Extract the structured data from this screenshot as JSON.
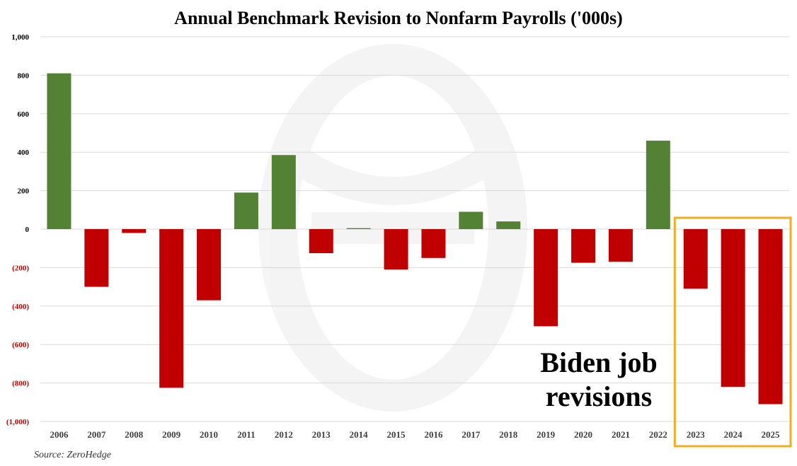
{
  "chart_data": {
    "type": "bar",
    "title": "Annual Benchmark Revision to Nonfarm Payrolls ('000s)",
    "categories": [
      "2006",
      "2007",
      "2008",
      "2009",
      "2010",
      "2011",
      "2012",
      "2013",
      "2014",
      "2015",
      "2016",
      "2017",
      "2018",
      "2019",
      "2020",
      "2021",
      "2022",
      "2023",
      "2024",
      "2025"
    ],
    "values": [
      810,
      -300,
      -20,
      -825,
      -370,
      190,
      385,
      -125,
      5,
      -210,
      -150,
      90,
      40,
      -505,
      -175,
      -170,
      460,
      -310,
      -820,
      -910
    ],
    "ylim": [
      -1000,
      1000
    ],
    "yticks": [
      1000,
      800,
      600,
      400,
      200,
      0,
      -200,
      -400,
      -600,
      -800,
      -1000
    ],
    "ytick_labels": [
      "1,000",
      "800",
      "600",
      "400",
      "200",
      "0",
      "(200)",
      "(400)",
      "(600)",
      "(800)",
      "(1,000)"
    ],
    "grid": true,
    "legend": "none",
    "positive_color": "#548235",
    "negative_color": "#c00000",
    "negative_label_color": "#c00000",
    "annotation": {
      "lines": [
        "Biden job",
        "revisions"
      ],
      "highlight_categories": [
        "2023",
        "2024",
        "2025"
      ],
      "highlight_color": "#f0ad21"
    },
    "source": "Source: ZeroHedge"
  }
}
